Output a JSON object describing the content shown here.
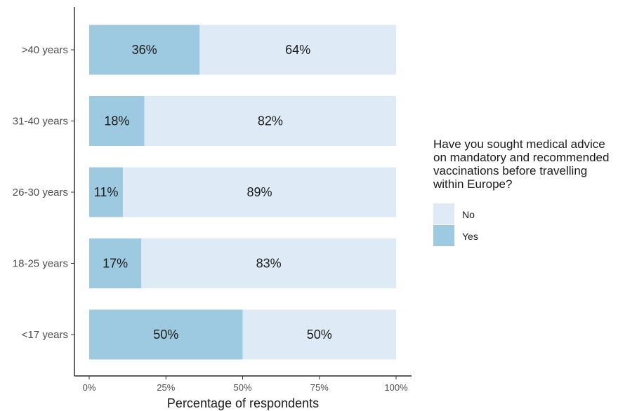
{
  "chart_data": {
    "type": "bar",
    "orientation": "horizontal",
    "stacked": true,
    "categories": [
      ">40 years",
      "31-40 years",
      "26-30 years",
      "18-25 years",
      "<17 years"
    ],
    "series": [
      {
        "name": "Yes",
        "values": [
          36,
          18,
          11,
          17,
          50
        ],
        "labels": [
          "36%",
          "18%",
          "11%",
          "17%",
          "50%"
        ],
        "color": "#9ecae1"
      },
      {
        "name": "No",
        "values": [
          64,
          82,
          89,
          83,
          50
        ],
        "labels": [
          "64%",
          "82%",
          "89%",
          "83%",
          "50%"
        ],
        "color": "#deebf7"
      }
    ],
    "xlabel": "Percentage of respondents",
    "ylabel": "",
    "xlim": [
      0,
      100
    ],
    "xticks": [
      0,
      25,
      50,
      75,
      100
    ],
    "xtick_labels": [
      "0%",
      "25%",
      "50%",
      "75%",
      "100%"
    ],
    "legend": {
      "title": [
        "Have you sought medical advice",
        "on mandatory and recommended",
        "vaccinations before travelling",
        "within Europe?"
      ],
      "entries": [
        {
          "label": "No",
          "color": "#deebf7"
        },
        {
          "label": "Yes",
          "color": "#9ecae1"
        }
      ],
      "position": "right"
    },
    "grid": false
  }
}
